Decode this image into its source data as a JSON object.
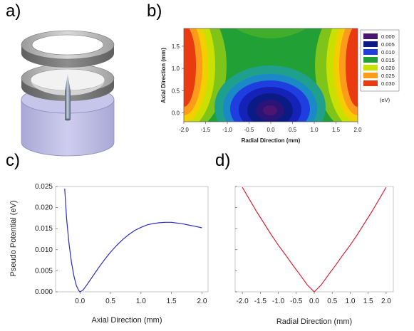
{
  "panels": {
    "a": "a)",
    "b": "b)",
    "c": "c)",
    "d": "d)"
  },
  "chart_data": [
    {
      "id": "b",
      "type": "heatmap",
      "title": "",
      "xlabel": "Radial Direction (mm)",
      "ylabel": "Axial Direction (mm)",
      "xlim": [
        -2.0,
        2.0
      ],
      "ylim": [
        -0.2,
        1.9
      ],
      "x_ticks": [
        "-2.0",
        "-1.5",
        "-1.0",
        "-0.5",
        "0.0",
        "0.5",
        "1.0",
        "1.5",
        "2.0"
      ],
      "y_ticks": [
        "0.0",
        "0.5",
        "1.0",
        "1.5"
      ],
      "legend": {
        "placement": "right",
        "unit": "(eV)",
        "levels": [
          {
            "label": "0.000",
            "color": "#4b1670"
          },
          {
            "label": "0.005",
            "color": "#0b1b86"
          },
          {
            "label": "0.010",
            "color": "#1e3ee0"
          },
          {
            "label": "0.015",
            "color": "#21a035"
          },
          {
            "label": "0.020",
            "color": "#c9e000"
          },
          {
            "label": "0.025",
            "color": "#ff9a1a"
          },
          {
            "label": "0.030",
            "color": "#ea3a10"
          }
        ]
      }
    },
    {
      "id": "c",
      "type": "line",
      "title": "",
      "xlabel": "Axial Direction (mm)",
      "ylabel": "Pseudo Potential (eV)",
      "xlim": [
        -0.4,
        2.1
      ],
      "ylim": [
        0.0,
        0.025
      ],
      "x_ticks": [
        "0.0",
        "0.5",
        "1.0",
        "1.5",
        "2.0"
      ],
      "y_ticks": [
        "0.000",
        "0.005",
        "0.010",
        "0.015",
        "0.020",
        "0.025"
      ],
      "color": "#2b2bc8",
      "x": [
        -0.25,
        -0.22,
        -0.18,
        -0.14,
        -0.1,
        -0.06,
        -0.02,
        0.0,
        0.05,
        0.1,
        0.2,
        0.3,
        0.4,
        0.5,
        0.6,
        0.7,
        0.8,
        0.9,
        1.0,
        1.1,
        1.2,
        1.3,
        1.4,
        1.5,
        1.6,
        1.7,
        1.8,
        1.9,
        2.0
      ],
      "y": [
        0.0245,
        0.0175,
        0.0115,
        0.007,
        0.0038,
        0.0015,
        0.0003,
        0.0,
        0.0004,
        0.0014,
        0.0035,
        0.0056,
        0.0076,
        0.0094,
        0.011,
        0.0124,
        0.0136,
        0.0146,
        0.0153,
        0.0159,
        0.0162,
        0.0164,
        0.0165,
        0.0165,
        0.0163,
        0.0161,
        0.0158,
        0.0155,
        0.0152
      ]
    },
    {
      "id": "d",
      "type": "line",
      "title": "",
      "xlabel": "Radial Direction (mm)",
      "ylabel": "",
      "xlim": [
        -2.2,
        2.2
      ],
      "ylim": [
        0.0,
        0.025
      ],
      "x_ticks": [
        "-2.0",
        "-1.5",
        "-1.0",
        "-0.5",
        "0.0",
        "0.5",
        "1.0",
        "1.5",
        "2.0"
      ],
      "color": "#d8233a",
      "x": [
        -2.0,
        -1.8,
        -1.6,
        -1.4,
        -1.2,
        -1.0,
        -0.8,
        -0.6,
        -0.4,
        -0.2,
        0.0,
        0.2,
        0.4,
        0.6,
        0.8,
        1.0,
        1.2,
        1.4,
        1.6,
        1.8,
        2.0
      ],
      "y": [
        0.0248,
        0.0219,
        0.019,
        0.0163,
        0.0136,
        0.0111,
        0.0088,
        0.0064,
        0.0041,
        0.0017,
        0.0,
        0.0017,
        0.0041,
        0.0064,
        0.0088,
        0.0111,
        0.0136,
        0.0163,
        0.019,
        0.0219,
        0.0248
      ]
    }
  ]
}
